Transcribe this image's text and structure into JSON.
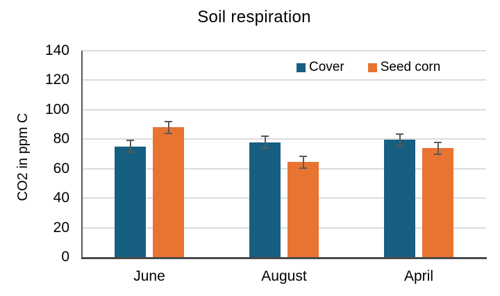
{
  "title": "Soil respiration",
  "chart_data": {
    "type": "bar",
    "categories": [
      "June",
      "August",
      "April"
    ],
    "series": [
      {
        "name": "Cover",
        "color": "#175f81",
        "values": [
          75,
          78,
          79.5
        ],
        "errors": [
          4,
          4,
          4
        ]
      },
      {
        "name": "Seed corn",
        "color": "#e87431",
        "values": [
          88,
          64.5,
          74
        ],
        "errors": [
          4,
          4,
          4
        ]
      }
    ],
    "ylabel": "CO2 in ppm C",
    "xlabel": "",
    "ylim": [
      0,
      140
    ],
    "ytick_step": 20,
    "yticks": [
      0,
      20,
      40,
      60,
      80,
      100,
      120,
      140
    ],
    "grid": true,
    "legend_position": "top-right-inside"
  },
  "colors": {
    "grid": "#dcdcdc",
    "axis": "#595959",
    "error_bar": "#595959",
    "text": "#000000",
    "background": "#ffffff"
  }
}
